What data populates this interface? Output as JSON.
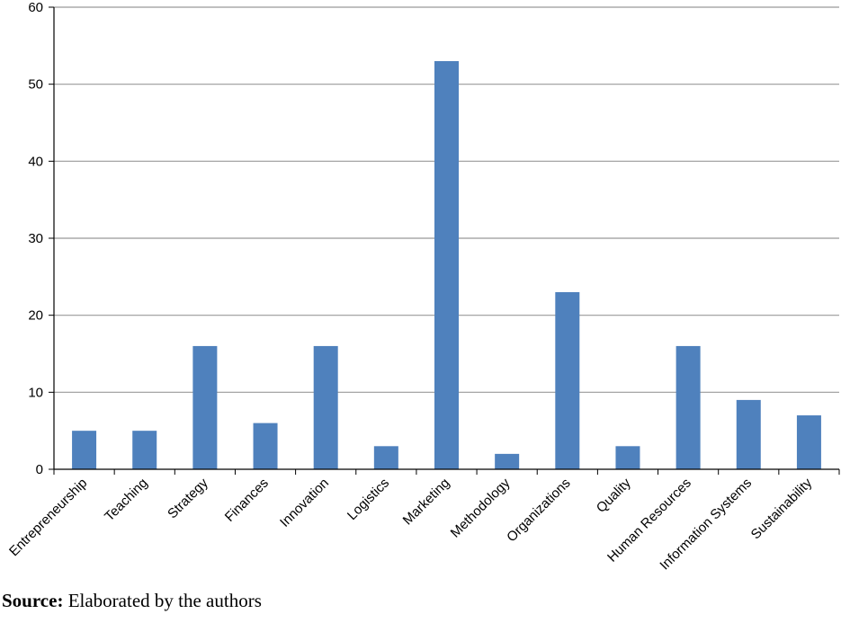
{
  "chart_data": {
    "type": "bar",
    "categories": [
      "Entrepreneurship",
      "Teaching",
      "Strategy",
      "Finances",
      "Innovation",
      "Logistics",
      "Marketing",
      "Methodology",
      "Organizations",
      "Quality",
      "Human Resources",
      "Information Systems",
      "Sustainability"
    ],
    "values": [
      5,
      5,
      16,
      6,
      16,
      3,
      53,
      2,
      23,
      3,
      16,
      9,
      7
    ],
    "ylim": [
      0,
      60
    ],
    "yticks": [
      0,
      10,
      20,
      30,
      40,
      50,
      60
    ],
    "grid": true,
    "bar_color": "#4f81bd",
    "grid_color": "#999999",
    "title": "",
    "xlabel": "",
    "ylabel": ""
  },
  "source": {
    "label": "Source:",
    "text": " Elaborated by the authors"
  }
}
